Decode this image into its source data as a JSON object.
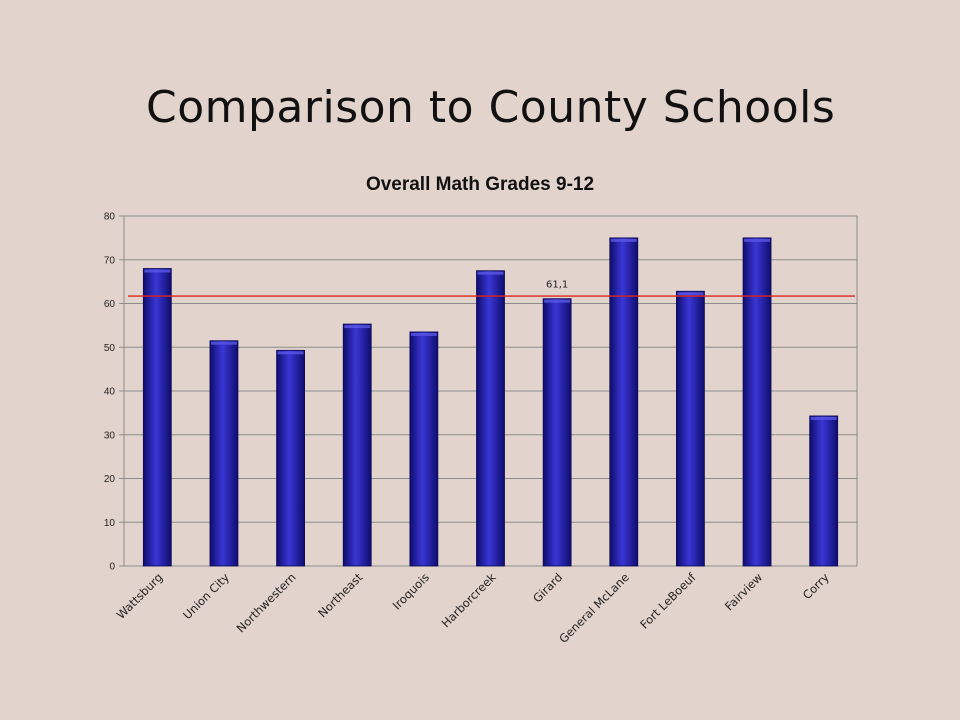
{
  "slide": {
    "title": "Comparison to County Schools"
  },
  "chart_data": {
    "type": "bar",
    "title": "Overall Math Grades 9-12",
    "xlabel": "",
    "ylabel": "",
    "ylim": [
      0,
      80
    ],
    "yticks": [
      0,
      10,
      20,
      30,
      40,
      50,
      60,
      70,
      80
    ],
    "grid": true,
    "categories": [
      "Wattsburg",
      "Union City",
      "Northwestern",
      "Northeast",
      "Iroquois",
      "Harborcreek",
      "Girard",
      "General McLane",
      "Fort LeBoeuf",
      "Fairview",
      "Corry"
    ],
    "values": [
      68,
      51.5,
      49.3,
      55.3,
      53.5,
      67.5,
      61.1,
      75,
      62.8,
      75,
      34.3
    ],
    "data_labels": [
      {
        "index": 6,
        "text": "61,1"
      }
    ],
    "reference_line": {
      "value": 61.7
    },
    "colors": {
      "bar": "#1e1aa8",
      "bar_light": "#3a36d6",
      "bar_dark": "#0f0d6e",
      "reference_line": "#e0241b",
      "grid": "#8c8c8c"
    }
  }
}
